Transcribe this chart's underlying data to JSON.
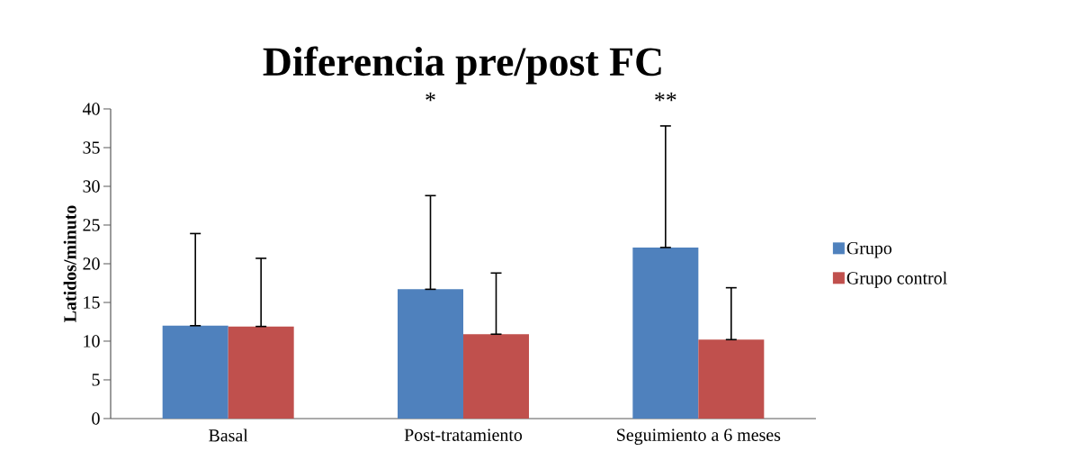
{
  "chart_data": {
    "type": "bar",
    "title": "Diferencia pre/post FC",
    "ylabel": "Latidos/minuto",
    "categories": [
      "Basal",
      "Post-tratamiento",
      "Seguimiento a 6 meses"
    ],
    "series": [
      {
        "name": "Grupo",
        "color": "#4f81bd",
        "values": [
          12.0,
          16.7,
          22.1
        ],
        "errors": [
          [
            12.0,
            23.9
          ],
          [
            16.7,
            28.8
          ],
          [
            22.1,
            37.8
          ]
        ]
      },
      {
        "name": "Grupo control",
        "color": "#c0504d",
        "values": [
          11.9,
          10.9,
          10.2
        ],
        "errors": [
          [
            11.9,
            20.7
          ],
          [
            10.9,
            18.8
          ],
          [
            10.2,
            16.9
          ]
        ]
      }
    ],
    "ylim": [
      0,
      40
    ],
    "yticks": [
      0,
      5,
      10,
      15,
      20,
      25,
      30,
      35,
      40
    ],
    "legend": "right",
    "annotations": [
      "*",
      "**"
    ]
  }
}
